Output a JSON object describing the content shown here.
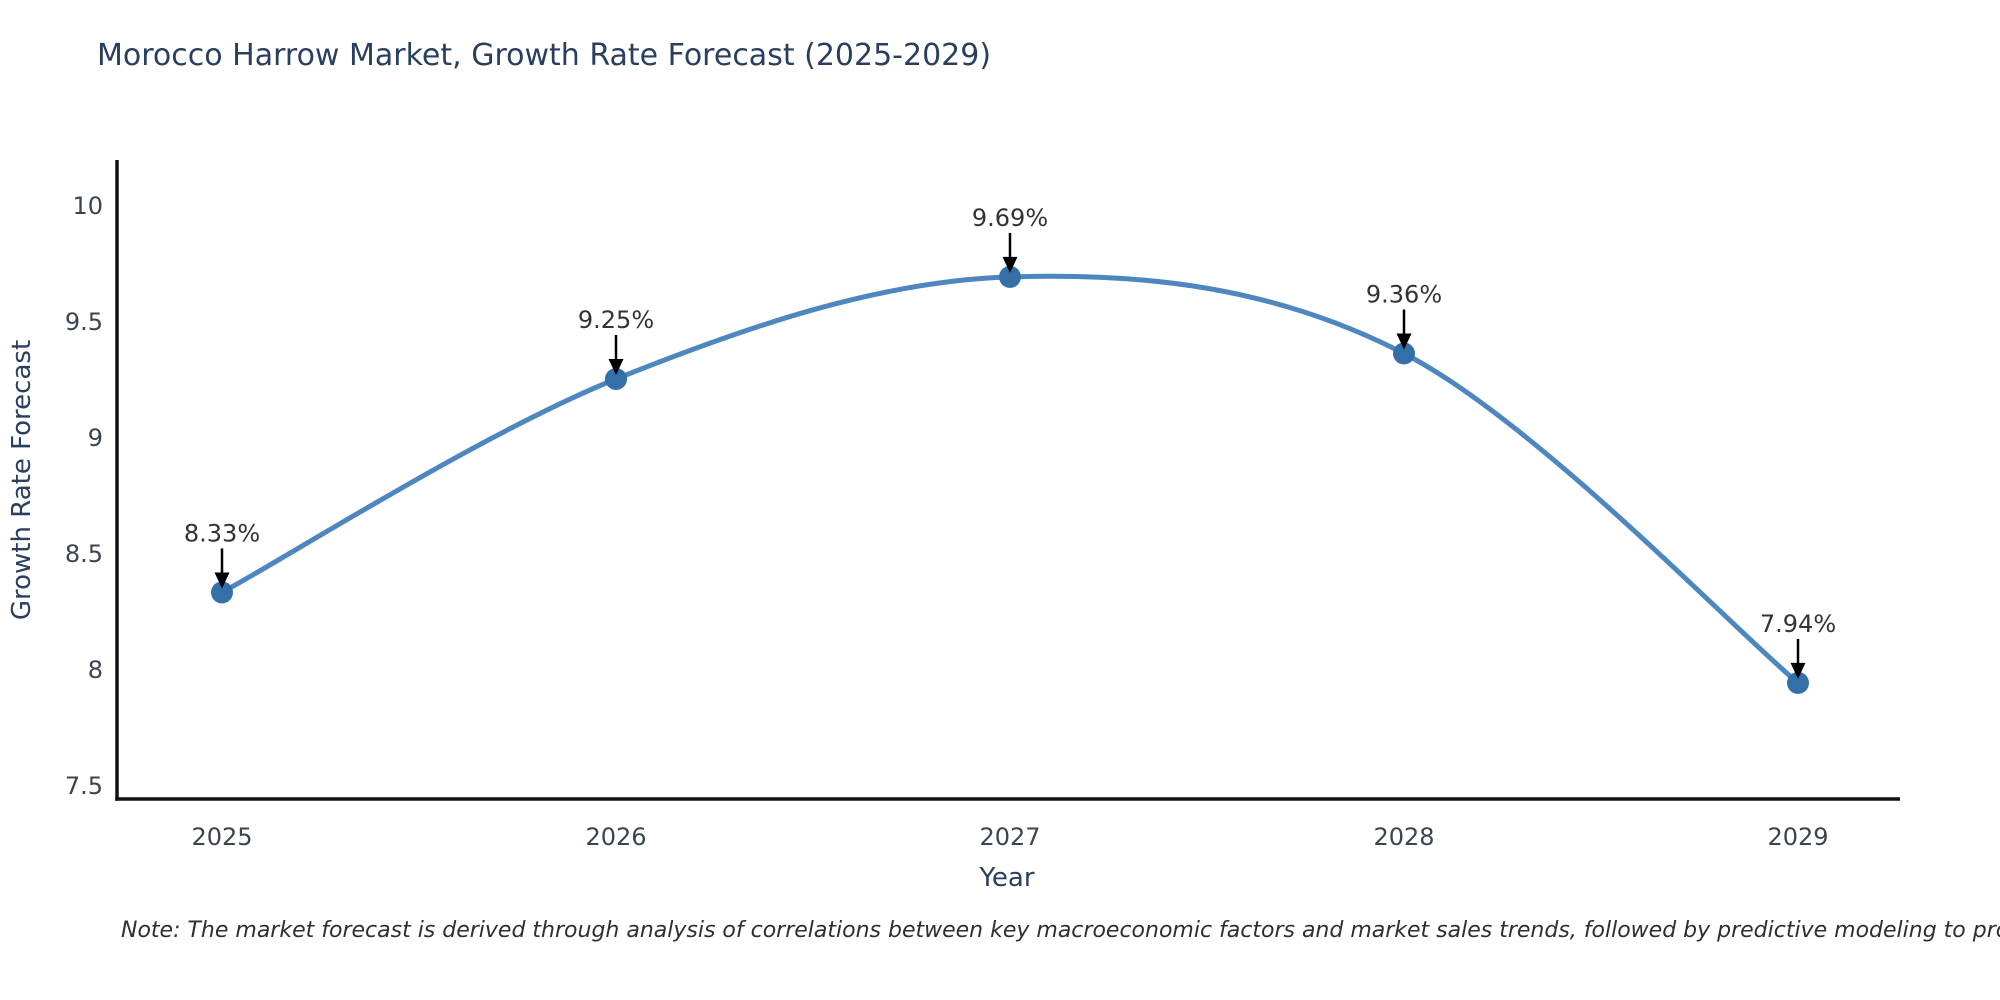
{
  "chart": {
    "note": "Note: The market forecast is derived through analysis of correlations between key macroeconomic factors and market sales trends, followed by predictive modeling to project future sales"
  },
  "chart_data": {
    "type": "line",
    "title": "Morocco Harrow Market, Growth Rate Forecast (2025-2029)",
    "xlabel": "Year",
    "ylabel": "Growth Rate Forecast",
    "x": [
      2025,
      2026,
      2027,
      2028,
      2029
    ],
    "values": [
      8.33,
      9.25,
      9.69,
      9.36,
      7.94
    ],
    "point_labels": [
      "8.33%",
      "9.25%",
      "9.69%",
      "9.36%",
      "7.94%"
    ],
    "yticks": [
      10,
      9.5,
      9,
      8.5,
      8,
      7.5
    ],
    "ylim": [
      7.44,
      10.2
    ],
    "grid": false,
    "legend": "none",
    "smooth_spline": true,
    "line_color": "#4e87c0",
    "marker_color": "#3470a8",
    "axis_color": "#111111",
    "arrow_color": "#000000",
    "title_color": "#2a3f5f",
    "tick_color": "#3b4552",
    "annotation_color": "#333333",
    "background_color": "#ffffff"
  }
}
